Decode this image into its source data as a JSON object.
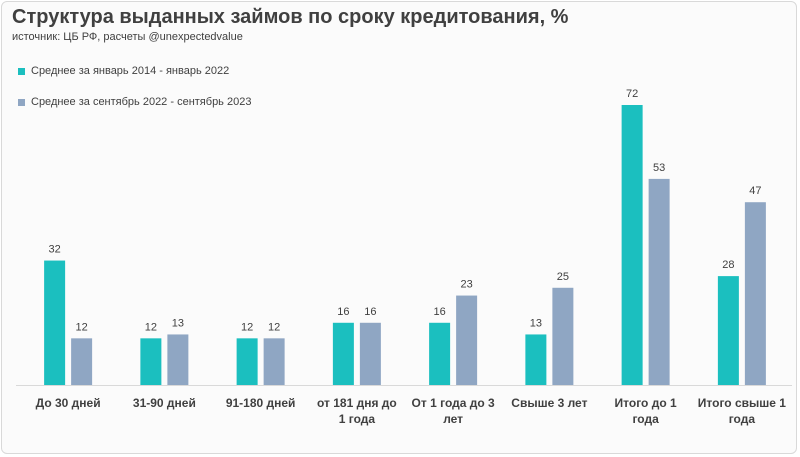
{
  "title": "Структура выданных займов по сроку кредитования, %",
  "subtitle": "источник: ЦБ РФ, расчеты @unexpectedvalue",
  "chart_data": {
    "type": "bar",
    "categories": [
      [
        "До 30 дней"
      ],
      [
        "31-90 дней"
      ],
      [
        "91-180 дней"
      ],
      [
        "от 181 дня до",
        "1 года"
      ],
      [
        "От 1 года до 3",
        "лет"
      ],
      [
        "Свыше 3 лет"
      ],
      [
        "Итого до 1",
        "года"
      ],
      [
        "Итого свыше 1",
        "года"
      ]
    ],
    "series": [
      {
        "name": "Среднее за январь 2014 - январь 2022",
        "color": "#1bbfbf",
        "values": [
          32,
          12,
          12,
          16,
          16,
          13,
          72,
          28
        ]
      },
      {
        "name": "Среднее за сентябрь 2022 - сентябрь 2023",
        "color": "#8fa6c3",
        "values": [
          12,
          13,
          12,
          16,
          23,
          25,
          53,
          47
        ]
      }
    ],
    "ylim": [
      0,
      72
    ],
    "grid": false,
    "legend": "top-left",
    "data_labels": true
  }
}
